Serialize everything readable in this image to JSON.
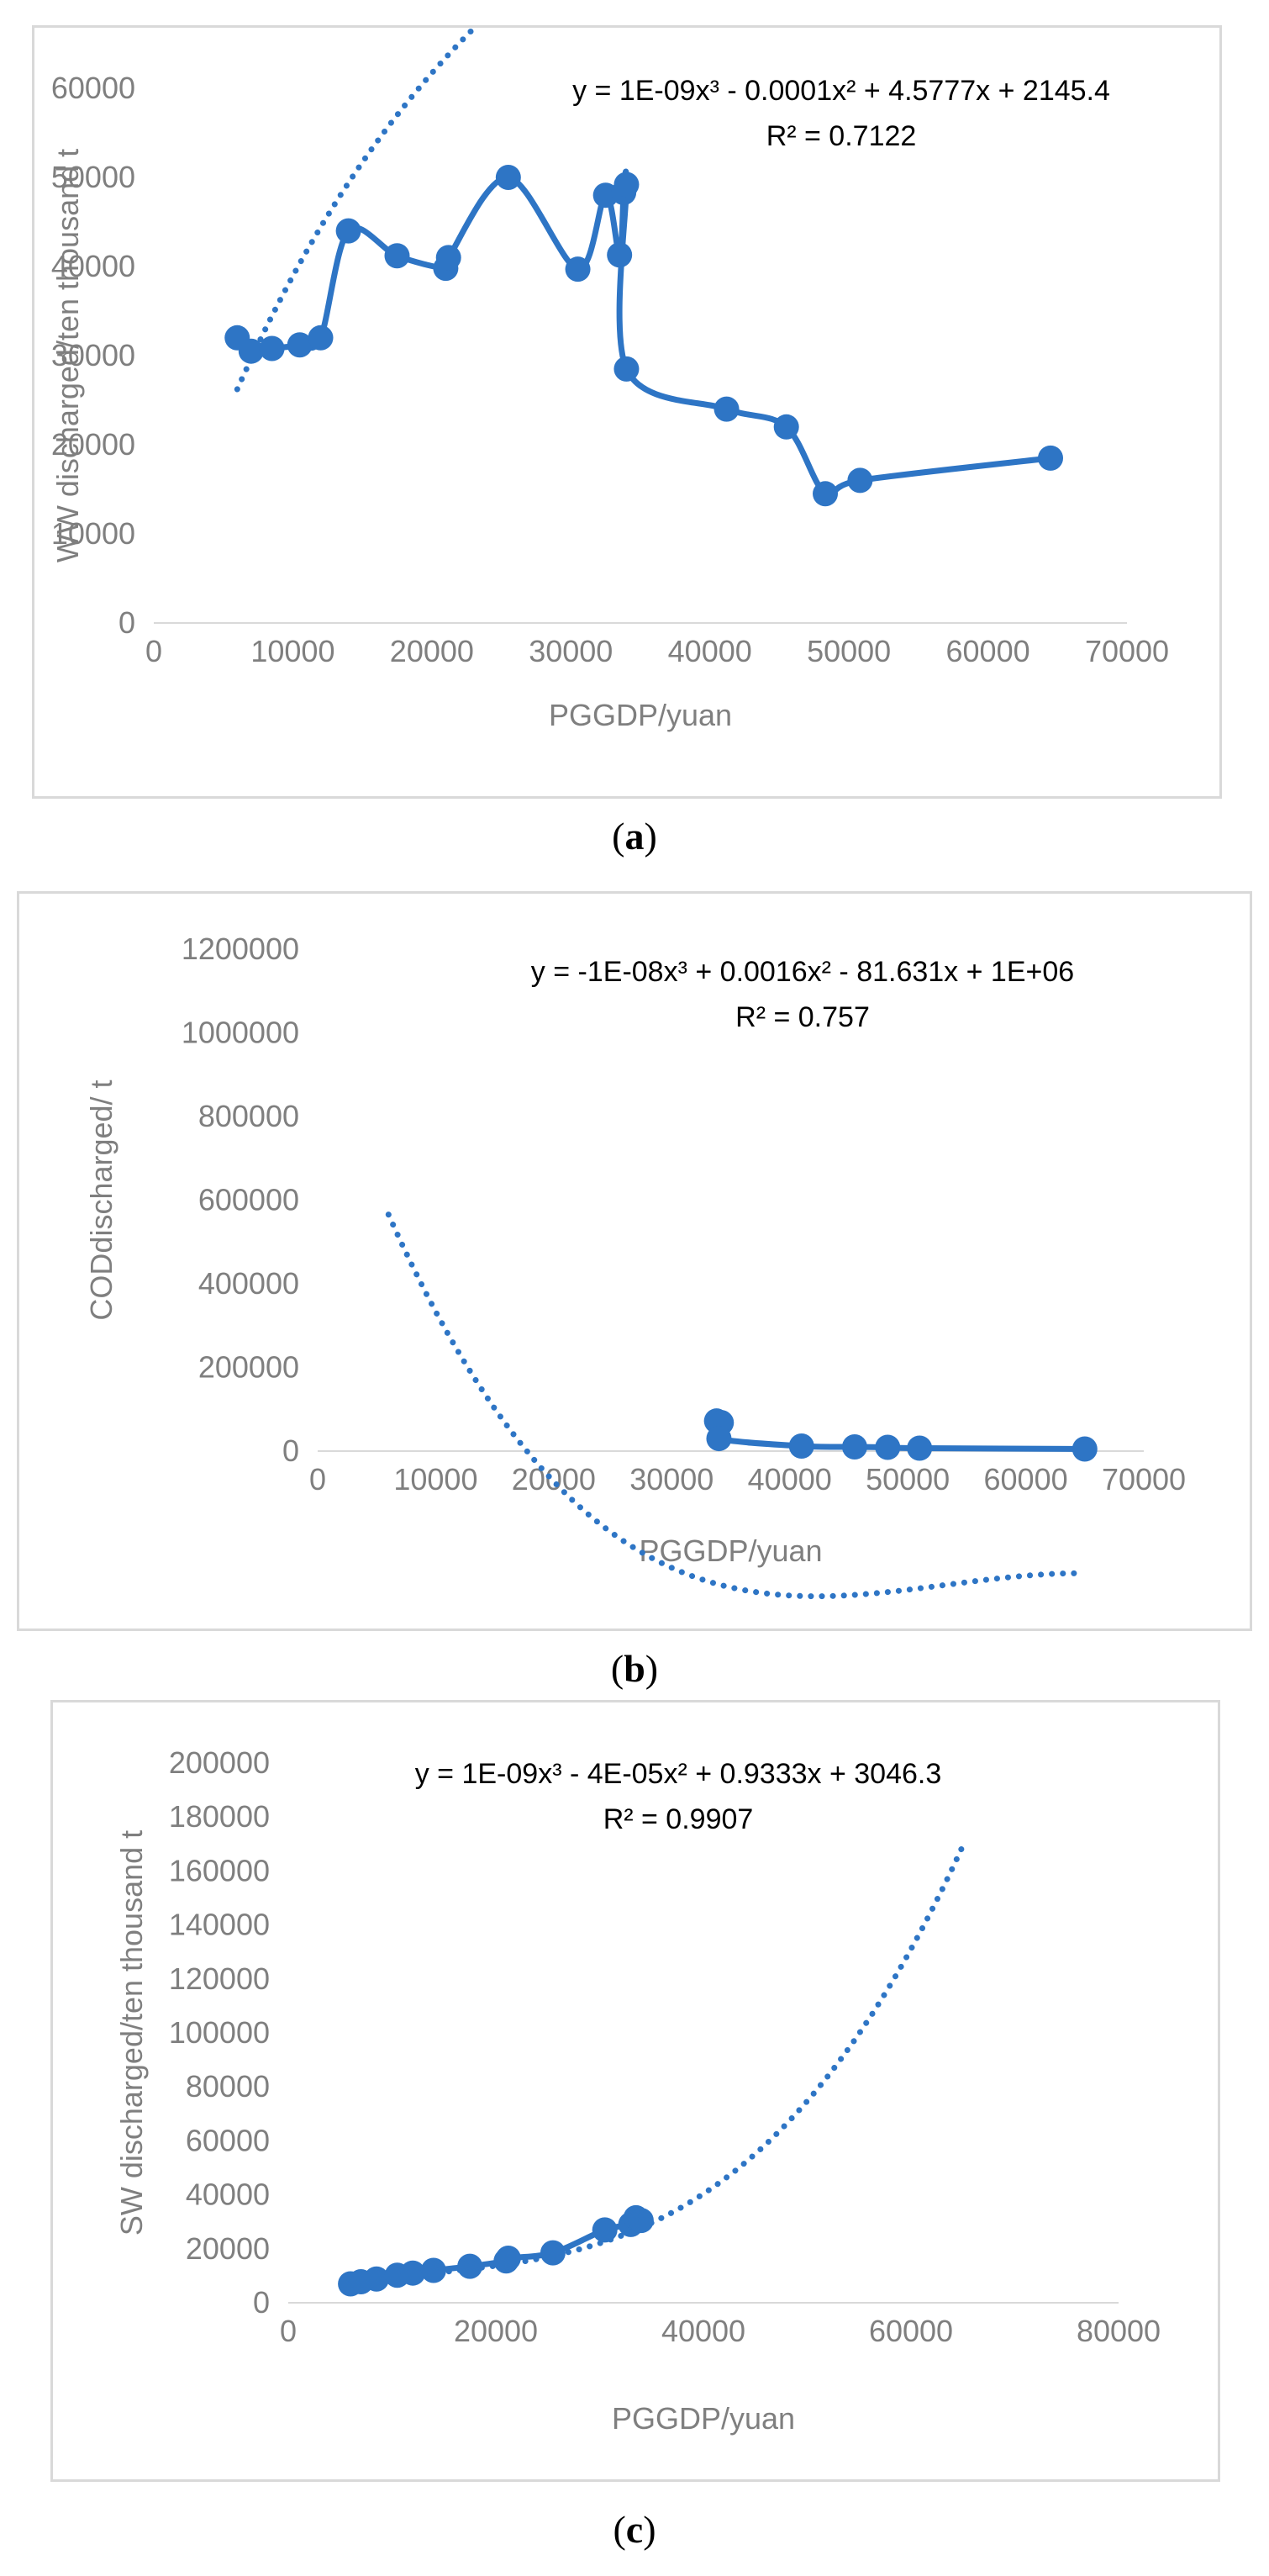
{
  "charts_meta": {
    "series_color": "#2E75C5",
    "axis_text_color": "#7f7f7f",
    "equation_color": "#000000"
  },
  "chart_data": [
    {
      "type": "scatter",
      "caption": "a",
      "xlabel": "PGGDP/yuan",
      "ylabel": "WW discharged/ten thousand t",
      "xlim": [
        0,
        70000
      ],
      "ylim": [
        0,
        60000
      ],
      "xticks": [
        "0",
        "10000",
        "20000",
        "30000",
        "40000",
        "50000",
        "60000",
        "70000"
      ],
      "yticks": [
        "0",
        "10000",
        "20000",
        "30000",
        "40000",
        "50000",
        "60000"
      ],
      "grid": false,
      "legend": "none",
      "equation": "y = 1E-09x³ - 0.0001x² + 4.5777x + 2145.4",
      "r_squared": "R² = 0.7122",
      "trendline": {
        "kind": "poly3",
        "coef": [
          1e-09,
          -0.0001,
          4.5777,
          2145.4
        ],
        "x_range": [
          6000,
          64500
        ]
      },
      "series": [
        {
          "smooth_line": true,
          "points": [
            [
              6000,
              32000
            ],
            [
              7000,
              30500
            ],
            [
              8500,
              30800
            ],
            [
              10500,
              31200
            ],
            [
              12000,
              32000
            ],
            [
              14000,
              44000
            ],
            [
              17500,
              41200
            ],
            [
              21000,
              39800
            ],
            [
              21200,
              41000
            ],
            [
              25500,
              50000
            ],
            [
              30500,
              39700
            ],
            [
              32500,
              48000
            ],
            [
              33500,
              41300
            ],
            [
              33800,
              48300
            ],
            [
              34000,
              49200
            ],
            [
              34000,
              28500
            ],
            [
              41200,
              24000
            ],
            [
              45500,
              22000
            ],
            [
              48300,
              14500
            ],
            [
              50800,
              16000
            ],
            [
              64500,
              18500
            ]
          ]
        }
      ]
    },
    {
      "type": "scatter",
      "caption": "b",
      "xlabel": "PGGDP/yuan",
      "ylabel": "CODdischarged/ t",
      "xlim": [
        0,
        70000
      ],
      "ylim": [
        0,
        1200000
      ],
      "xticks": [
        "0",
        "10000",
        "20000",
        "30000",
        "40000",
        "50000",
        "60000",
        "70000"
      ],
      "yticks": [
        "0",
        "200000",
        "400000",
        "600000",
        "800000",
        "1000000",
        "1200000"
      ],
      "grid": false,
      "legend": "none",
      "equation": "y = -1E-08x³ + 0.0016x² - 81.631x + 1E+06",
      "r_squared": "R² = 0.757",
      "trendline": {
        "kind": "poly3",
        "coef": [
          -1e-08,
          0.0016,
          -81.631,
          1000000
        ],
        "x_range": [
          6000,
          65000
        ]
      },
      "series": [
        {
          "smooth_line": true,
          "points": [
            [
              33800,
              72000
            ],
            [
              34200,
              68000
            ],
            [
              34000,
              30000
            ],
            [
              41000,
              12000
            ],
            [
              45500,
              10000
            ],
            [
              48300,
              9000
            ],
            [
              51000,
              7000
            ],
            [
              65000,
              5000
            ]
          ]
        }
      ]
    },
    {
      "type": "scatter",
      "caption": "c",
      "xlabel": "PGGDP/yuan",
      "ylabel": "SW discharged/ten thousand t",
      "xlim": [
        0,
        80000
      ],
      "ylim": [
        0,
        200000
      ],
      "xticks": [
        "0",
        "20000",
        "40000",
        "60000",
        "80000"
      ],
      "yticks": [
        "0",
        "20000",
        "40000",
        "60000",
        "80000",
        "100000",
        "120000",
        "140000",
        "160000",
        "180000",
        "200000"
      ],
      "grid": false,
      "legend": "none",
      "equation": "y = 1E-09x³ - 4E-05x² + 0.9333x + 3046.3",
      "r_squared": "R² = 0.9907",
      "trendline": {
        "kind": "poly3",
        "coef": [
          1e-09,
          -4e-05,
          0.9333,
          3046.3
        ],
        "x_range": [
          6000,
          65000
        ]
      },
      "series": [
        {
          "smooth_line": true,
          "points": [
            [
              6000,
              7000
            ],
            [
              7000,
              7800
            ],
            [
              8500,
              8800
            ],
            [
              10500,
              10200
            ],
            [
              12000,
              11000
            ],
            [
              14000,
              12000
            ],
            [
              17500,
              13500
            ],
            [
              21000,
              15500
            ],
            [
              21200,
              16500
            ],
            [
              25500,
              18500
            ],
            [
              30500,
              27000
            ],
            [
              33000,
              29000
            ],
            [
              33500,
              31500
            ],
            [
              34000,
              30500
            ]
          ]
        }
      ]
    }
  ]
}
